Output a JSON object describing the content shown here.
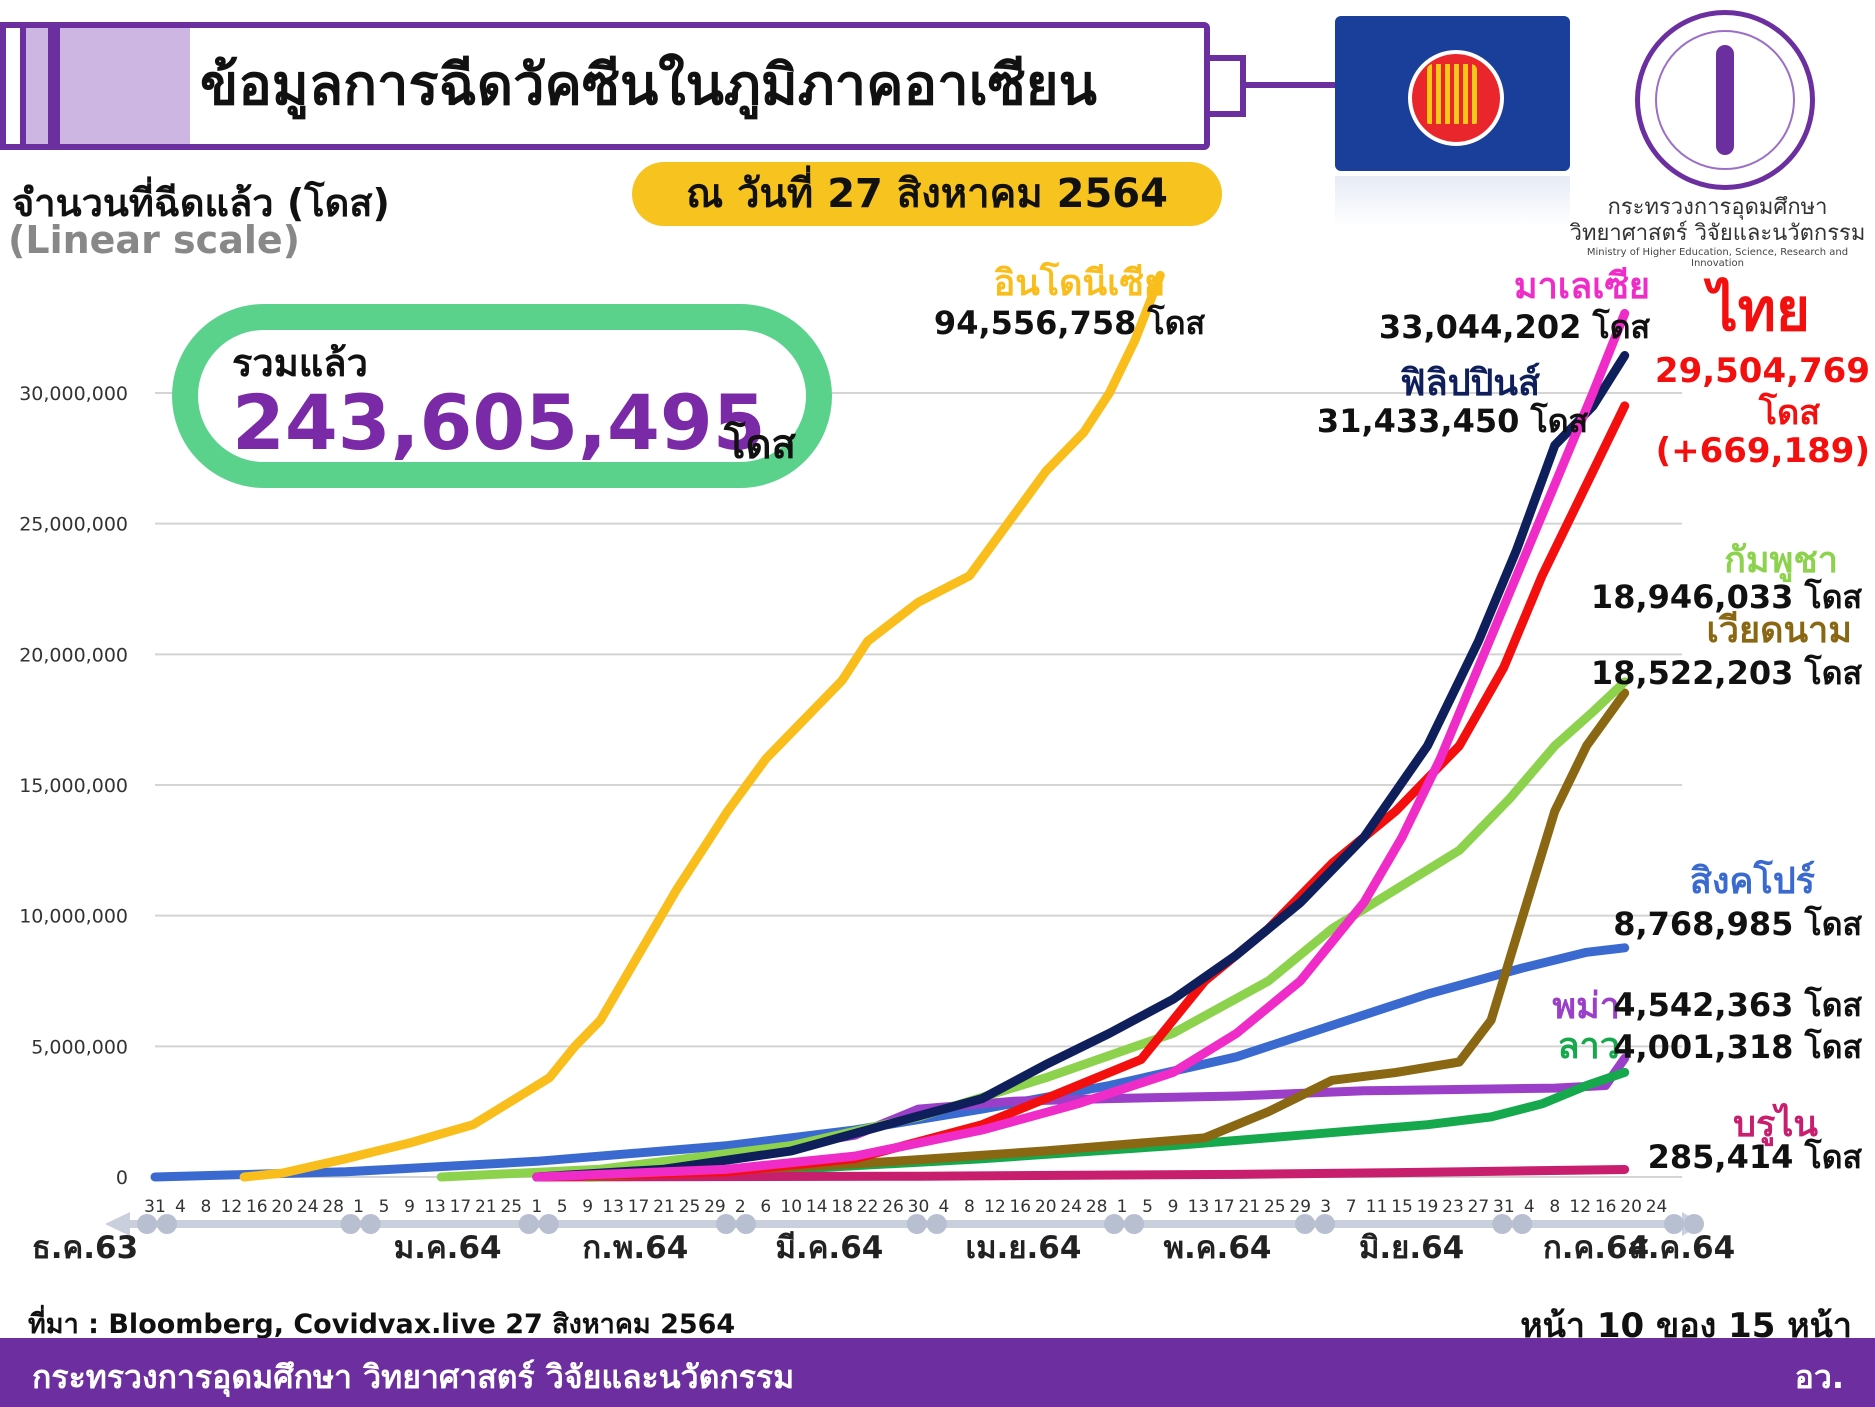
{
  "header": {
    "title": "ข้อมูลการฉีดวัคซีนในภูมิภาคอาเซียน",
    "date_badge": "ณ วันที่ 27 สิงหาคม 2564",
    "ministry_logo_th_line1": "กระทรวงการอุดมศึกษา",
    "ministry_logo_th_line2": "วิทยาศาสตร์ วิจัยและนวัตกรรม",
    "ministry_logo_en": "Ministry of Higher Education, Science, Research and Innovation"
  },
  "axis_title": "จำนวนที่ฉีดแล้ว (โดส)",
  "axis_scale": "(Linear scale)",
  "total": {
    "label": "รวมแล้ว",
    "value": "243,605,495",
    "unit": "โดส"
  },
  "chart_data": {
    "type": "line",
    "yticks": [
      "0",
      "5,000,000",
      "10,000,000",
      "15,000,000",
      "20,000,000",
      "25,000,000",
      "30,000,000"
    ],
    "ylim": [
      0,
      34000000
    ],
    "xlim_days": [
      0,
      240
    ],
    "x_tick_labels": [
      {
        "d": 0,
        "t": "31"
      },
      {
        "d": 4,
        "t": "4"
      },
      {
        "d": 8,
        "t": "8"
      },
      {
        "d": 12,
        "t": "12"
      },
      {
        "d": 16,
        "t": "16"
      },
      {
        "d": 20,
        "t": "20"
      },
      {
        "d": 24,
        "t": "24"
      },
      {
        "d": 28,
        "t": "28"
      },
      {
        "d": 32,
        "t": "1"
      },
      {
        "d": 36,
        "t": "5"
      },
      {
        "d": 40,
        "t": "9"
      },
      {
        "d": 44,
        "t": "13"
      },
      {
        "d": 48,
        "t": "17"
      },
      {
        "d": 52,
        "t": "21"
      },
      {
        "d": 56,
        "t": "25"
      },
      {
        "d": 60,
        "t": "1"
      },
      {
        "d": 64,
        "t": "5"
      },
      {
        "d": 68,
        "t": "9"
      },
      {
        "d": 72,
        "t": "13"
      },
      {
        "d": 76,
        "t": "17"
      },
      {
        "d": 80,
        "t": "21"
      },
      {
        "d": 84,
        "t": "25"
      },
      {
        "d": 88,
        "t": "29"
      },
      {
        "d": 92,
        "t": "2"
      },
      {
        "d": 96,
        "t": "6"
      },
      {
        "d": 100,
        "t": "10"
      },
      {
        "d": 104,
        "t": "14"
      },
      {
        "d": 108,
        "t": "18"
      },
      {
        "d": 112,
        "t": "22"
      },
      {
        "d": 116,
        "t": "26"
      },
      {
        "d": 120,
        "t": "30"
      },
      {
        "d": 124,
        "t": "4"
      },
      {
        "d": 128,
        "t": "8"
      },
      {
        "d": 132,
        "t": "12"
      },
      {
        "d": 136,
        "t": "16"
      },
      {
        "d": 140,
        "t": "20"
      },
      {
        "d": 144,
        "t": "24"
      },
      {
        "d": 148,
        "t": "28"
      },
      {
        "d": 152,
        "t": "1"
      },
      {
        "d": 156,
        "t": "5"
      },
      {
        "d": 160,
        "t": "9"
      },
      {
        "d": 164,
        "t": "13"
      },
      {
        "d": 168,
        "t": "17"
      },
      {
        "d": 172,
        "t": "21"
      },
      {
        "d": 176,
        "t": "25"
      },
      {
        "d": 180,
        "t": "29"
      },
      {
        "d": 184,
        "t": "3"
      },
      {
        "d": 188,
        "t": "7"
      },
      {
        "d": 192,
        "t": "11"
      },
      {
        "d": 196,
        "t": "15"
      },
      {
        "d": 200,
        "t": "19"
      },
      {
        "d": 204,
        "t": "23"
      },
      {
        "d": 208,
        "t": "27"
      },
      {
        "d": 212,
        "t": "31"
      },
      {
        "d": 216,
        "t": "4"
      },
      {
        "d": 220,
        "t": "8"
      },
      {
        "d": 224,
        "t": "12"
      },
      {
        "d": 228,
        "t": "16"
      },
      {
        "d": 232,
        "t": "20"
      },
      {
        "d": 236,
        "t": "24"
      }
    ],
    "months": [
      {
        "d": 0,
        "label": "ธ.ค.63"
      },
      {
        "d": 15,
        "label": "ม.ค.64"
      },
      {
        "d": 45,
        "label": "ก.พ.64"
      },
      {
        "d": 75,
        "label": "มี.ค.64"
      },
      {
        "d": 106,
        "label": "เม.ย.64"
      },
      {
        "d": 136,
        "label": "พ.ค.64"
      },
      {
        "d": 167,
        "label": "มิ.ย.64"
      },
      {
        "d": 197,
        "label": "ก.ค.64"
      },
      {
        "d": 225,
        "label": "ส.ค.64"
      }
    ],
    "month_boundaries": [
      0,
      32,
      60,
      91,
      121,
      152,
      182,
      213,
      240
    ],
    "series": [
      {
        "name": "อินโดนีเซีย",
        "value_label": "94,556,758 โดส",
        "color": "#f9bd1c",
        "points": [
          [
            14,
            0
          ],
          [
            20,
            150000
          ],
          [
            30,
            700000
          ],
          [
            40,
            1300000
          ],
          [
            50,
            2000000
          ],
          [
            58,
            3200000
          ],
          [
            62,
            3800000
          ],
          [
            66,
            5000000
          ],
          [
            70,
            6000000
          ],
          [
            76,
            8500000
          ],
          [
            82,
            11000000
          ],
          [
            86,
            12500000
          ],
          [
            90,
            14000000
          ],
          [
            96,
            16000000
          ],
          [
            100,
            17000000
          ],
          [
            108,
            19000000
          ],
          [
            112,
            20500000
          ],
          [
            120,
            22000000
          ],
          [
            128,
            23000000
          ],
          [
            134,
            25000000
          ],
          [
            140,
            27000000
          ],
          [
            146,
            28500000
          ],
          [
            150,
            30000000
          ],
          [
            154,
            32000000
          ],
          [
            158,
            34500000
          ]
        ]
      },
      {
        "name": "มาเลเซีย",
        "value_label": "33,044,202 โดส",
        "color": "#f02cc8",
        "points": [
          [
            60,
            0
          ],
          [
            90,
            300000
          ],
          [
            110,
            800000
          ],
          [
            130,
            1800000
          ],
          [
            145,
            2800000
          ],
          [
            160,
            4000000
          ],
          [
            170,
            5500000
          ],
          [
            180,
            7500000
          ],
          [
            190,
            10500000
          ],
          [
            196,
            13000000
          ],
          [
            202,
            16000000
          ],
          [
            208,
            19500000
          ],
          [
            214,
            23000000
          ],
          [
            220,
            26500000
          ],
          [
            226,
            30000000
          ],
          [
            231,
            33044202
          ]
        ]
      },
      {
        "name": "ฟิลิปปินส์",
        "value_label": "31,433,450 โดส",
        "color": "#0f1f5c",
        "points": [
          [
            60,
            0
          ],
          [
            80,
            300000
          ],
          [
            100,
            1000000
          ],
          [
            115,
            2000000
          ],
          [
            130,
            3000000
          ],
          [
            140,
            4300000
          ],
          [
            150,
            5500000
          ],
          [
            160,
            6800000
          ],
          [
            170,
            8500000
          ],
          [
            180,
            10500000
          ],
          [
            190,
            13000000
          ],
          [
            200,
            16500000
          ],
          [
            208,
            20500000
          ],
          [
            214,
            24000000
          ],
          [
            220,
            28000000
          ],
          [
            226,
            29500000
          ],
          [
            231,
            31433450
          ]
        ]
      },
      {
        "name": "ไทย",
        "value_label": "29,504,769",
        "unit_label": "โดส",
        "delta_label": "(+669,189)",
        "color": "#f40f0f",
        "points": [
          [
            60,
            0
          ],
          [
            90,
            200000
          ],
          [
            110,
            700000
          ],
          [
            130,
            2000000
          ],
          [
            145,
            3500000
          ],
          [
            155,
            4500000
          ],
          [
            165,
            7500000
          ],
          [
            175,
            9500000
          ],
          [
            185,
            12000000
          ],
          [
            195,
            14000000
          ],
          [
            205,
            16500000
          ],
          [
            212,
            19500000
          ],
          [
            218,
            23000000
          ],
          [
            224,
            26000000
          ],
          [
            231,
            29504769
          ]
        ]
      },
      {
        "name": "กัมพูชา",
        "value_label": "18,946,033 โดส",
        "color": "#8cd24c",
        "points": [
          [
            45,
            0
          ],
          [
            70,
            300000
          ],
          [
            100,
            1200000
          ],
          [
            120,
            2300000
          ],
          [
            140,
            3800000
          ],
          [
            160,
            5500000
          ],
          [
            175,
            7500000
          ],
          [
            185,
            9500000
          ],
          [
            195,
            11000000
          ],
          [
            205,
            12500000
          ],
          [
            213,
            14500000
          ],
          [
            220,
            16500000
          ],
          [
            226,
            17800000
          ],
          [
            231,
            18946033
          ]
        ]
      },
      {
        "name": "เวียดนาม",
        "value_label": "18,522,203 โดส",
        "color": "#8a6712",
        "points": [
          [
            68,
            0
          ],
          [
            110,
            500000
          ],
          [
            140,
            1000000
          ],
          [
            165,
            1500000
          ],
          [
            175,
            2500000
          ],
          [
            185,
            3700000
          ],
          [
            195,
            4000000
          ],
          [
            205,
            4400000
          ],
          [
            210,
            6000000
          ],
          [
            215,
            10000000
          ],
          [
            220,
            14000000
          ],
          [
            225,
            16500000
          ],
          [
            231,
            18522203
          ]
        ]
      },
      {
        "name": "สิงคโปร์",
        "value_label": "8,768,985 โดส",
        "color": "#3a6ad0",
        "points": [
          [
            0,
            0
          ],
          [
            30,
            200000
          ],
          [
            60,
            600000
          ],
          [
            90,
            1200000
          ],
          [
            110,
            1800000
          ],
          [
            130,
            2600000
          ],
          [
            150,
            3500000
          ],
          [
            170,
            4600000
          ],
          [
            185,
            5800000
          ],
          [
            200,
            7000000
          ],
          [
            215,
            8000000
          ],
          [
            225,
            8600000
          ],
          [
            231,
            8768985
          ]
        ]
      },
      {
        "name": "พม่า",
        "value_label": "4,542,363 โดส",
        "color": "#9b3fc8",
        "points": [
          [
            60,
            0
          ],
          [
            80,
            500000
          ],
          [
            100,
            1200000
          ],
          [
            110,
            1600000
          ],
          [
            120,
            2600000
          ],
          [
            135,
            2900000
          ],
          [
            150,
            3000000
          ],
          [
            170,
            3100000
          ],
          [
            190,
            3300000
          ],
          [
            220,
            3400000
          ],
          [
            228,
            3500000
          ],
          [
            231,
            4542363
          ]
        ]
      },
      {
        "name": "ลาว",
        "value_label": "4,001,318 โดส",
        "color": "#16a84c",
        "points": [
          [
            60,
            0
          ],
          [
            100,
            300000
          ],
          [
            130,
            700000
          ],
          [
            160,
            1200000
          ],
          [
            180,
            1600000
          ],
          [
            200,
            2000000
          ],
          [
            210,
            2300000
          ],
          [
            218,
            2800000
          ],
          [
            225,
            3500000
          ],
          [
            231,
            4001318
          ]
        ]
      },
      {
        "name": "บรูไน",
        "value_label": "285,414 โดส",
        "color": "#c81e6e",
        "points": [
          [
            60,
            0
          ],
          [
            120,
            30000
          ],
          [
            170,
            100000
          ],
          [
            200,
            180000
          ],
          [
            231,
            285414
          ]
        ]
      }
    ]
  },
  "footer": {
    "source": "ที่มา : Bloomberg, Covidvax.live 27 สิงหาคม 2564",
    "page": "หน้า 10 ของ 15 หน้า",
    "org": "กระทรวงการอุดมศึกษา วิทยาศาสตร์ วิจัยและนวัตกรรม",
    "org_short": "อว."
  }
}
